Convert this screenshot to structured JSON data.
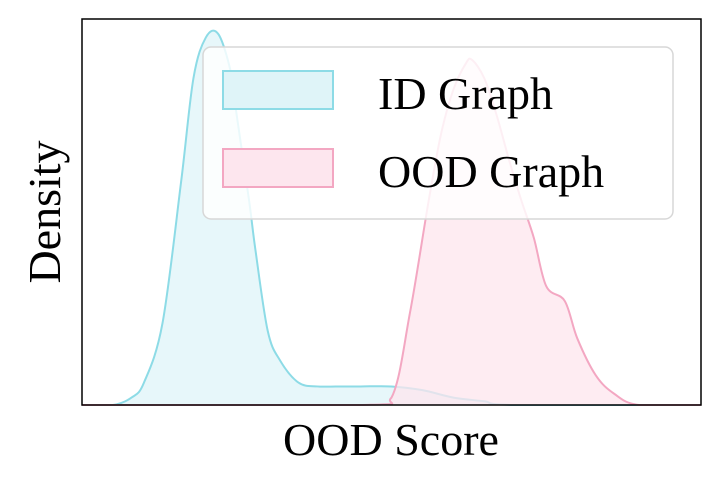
{
  "chart_data": {
    "type": "area",
    "title": "",
    "xlabel": "OOD Score",
    "ylabel": "Density",
    "x_ticks_visible": false,
    "y_ticks_visible": false,
    "grid": false,
    "legend_position": "top-right",
    "xlim": [
      0,
      1
    ],
    "ylim": [
      0,
      1.04
    ],
    "series": [
      {
        "name": "ID Graph",
        "color": "#8ddbe6",
        "fill": "#dff4f8",
        "x": [
          0.0,
          0.05,
          0.08,
          0.1,
          0.13,
          0.16,
          0.18,
          0.2,
          0.22,
          0.24,
          0.25,
          0.27,
          0.28,
          0.3,
          0.32,
          0.35,
          0.38,
          0.41,
          0.45,
          0.5,
          0.55,
          0.6,
          0.65,
          0.7,
          1.0
        ],
        "values": [
          0.0,
          0.0,
          0.02,
          0.06,
          0.22,
          0.6,
          0.88,
          0.99,
          1.0,
          0.9,
          0.78,
          0.55,
          0.42,
          0.2,
          0.12,
          0.06,
          0.05,
          0.05,
          0.05,
          0.05,
          0.04,
          0.02,
          0.01,
          0.0,
          0.0
        ]
      },
      {
        "name": "OOD Graph",
        "color": "#f3a7c2",
        "fill": "#fde6ee",
        "x": [
          0.0,
          0.45,
          0.5,
          0.53,
          0.56,
          0.58,
          0.6,
          0.62,
          0.63,
          0.65,
          0.67,
          0.69,
          0.71,
          0.73,
          0.75,
          0.78,
          0.8,
          0.83,
          0.86,
          0.9,
          1.0
        ],
        "values": [
          0.0,
          0.0,
          0.02,
          0.25,
          0.55,
          0.73,
          0.85,
          0.92,
          0.93,
          0.88,
          0.78,
          0.66,
          0.55,
          0.45,
          0.32,
          0.28,
          0.18,
          0.08,
          0.03,
          0.0,
          0.0
        ]
      }
    ]
  }
}
